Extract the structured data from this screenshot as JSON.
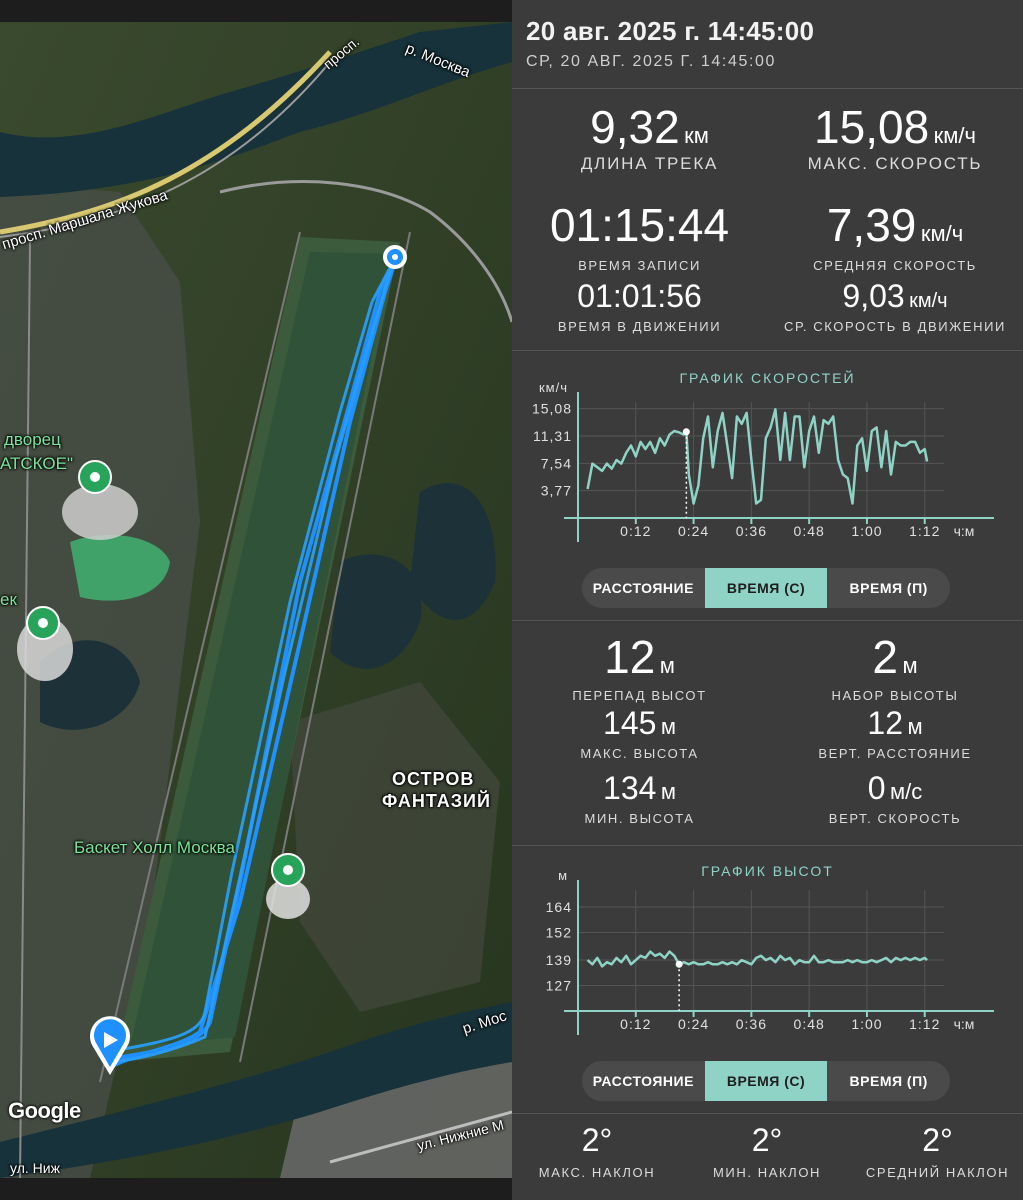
{
  "header": {
    "datetime": "20 авг. 2025 г. 14:45:00",
    "datetime_sub": "СР, 20 АВГ. 2025 Г. 14:45:00"
  },
  "map": {
    "labels": {
      "marshal_zhukov": "просп. Маршала Жукова",
      "prosp": "просп.",
      "river_top": "р. Москва",
      "river_bottom": "р. Мос",
      "palace": "дворец",
      "palace2": "АТСКОЕ\"",
      "ek": "ек",
      "basket": "Баскет Холл Москва",
      "island1": "ОСТРОВ",
      "island2": "ФАНТАЗИЙ",
      "nizhnie": "ул. Нижние М",
      "ul_nizh": "ул. Ниж"
    },
    "google_logo": "Google",
    "accent_track": "#1e90ff",
    "poi_color": "#27a35a"
  },
  "stats_top": {
    "distance": {
      "value": "9,32",
      "unit": "км",
      "label": "ДЛИНА ТРЕКА"
    },
    "max_speed": {
      "value": "15,08",
      "unit": "км/ч",
      "label": "МАКС. СКОРОСТЬ"
    },
    "rec_time": {
      "value": "01:15:44",
      "label": "ВРЕМЯ ЗАПИСИ"
    },
    "avg_speed": {
      "value": "7,39",
      "unit": "км/ч",
      "label": "СРЕДНЯЯ СКОРОСТЬ"
    },
    "move_time": {
      "value": "01:01:56",
      "label": "ВРЕМЯ В ДВИЖЕНИИ"
    },
    "move_avg_speed": {
      "value": "9,03",
      "unit": "км/ч",
      "label": "СР. СКОРОСТЬ В ДВИЖЕНИИ"
    }
  },
  "speed_chart_meta": {
    "title": "ГРАФИК СКОРОСТЕЙ",
    "y_unit": "км/ч",
    "x_unit": "ч:м"
  },
  "toggle_labels": [
    "РАССТОЯНИЕ",
    "ВРЕМЯ (С)",
    "ВРЕМЯ (П)"
  ],
  "stats_elev": {
    "diff": {
      "value": "12",
      "unit": "м",
      "label": "ПЕРЕПАД ВЫСОТ"
    },
    "gain": {
      "value": "2",
      "unit": "м",
      "label": "НАБОР ВЫСОТЫ"
    },
    "max_alt": {
      "value": "145",
      "unit": "м",
      "label": "МАКС. ВЫСОТА"
    },
    "vert_dist": {
      "value": "12",
      "unit": "м",
      "label": "ВЕРТ. РАССТОЯНИЕ"
    },
    "min_alt": {
      "value": "134",
      "unit": "м",
      "label": "МИН. ВЫСОТА"
    },
    "vert_speed": {
      "value": "0",
      "unit": "м/с",
      "label": "ВЕРТ. СКОРОСТЬ"
    }
  },
  "elev_chart_meta": {
    "title": "ГРАФИК ВЫСОТ",
    "y_unit": "м",
    "x_unit": "ч:м"
  },
  "slope": {
    "max": {
      "value": "2°",
      "label": "МАКС. НАКЛОН"
    },
    "min": {
      "value": "2°",
      "label": "МИН. НАКЛОН"
    },
    "avg": {
      "value": "2°",
      "label": "СРЕДНИЙ НАКЛОН"
    }
  },
  "chart_data": [
    {
      "type": "line",
      "title": "ГРАФИК СКОРОСТЕЙ",
      "ylabel": "км/ч",
      "xlabel": "ч:м",
      "ylim": [
        0,
        16
      ],
      "xlim": [
        0,
        76
      ],
      "yticks": [
        3.77,
        7.54,
        11.31,
        15.08
      ],
      "ytick_labels": [
        "3,77",
        "7,54",
        "11,31",
        "15,08"
      ],
      "xticks": [
        12,
        24,
        36,
        48,
        60,
        72
      ],
      "xtick_labels": [
        "0:12",
        "0:24",
        "0:36",
        "0:48",
        "1:00",
        "1:12"
      ],
      "color": "#8fd3c7",
      "cursor_x": 22.5,
      "x": [
        2,
        3,
        4,
        5,
        6,
        7,
        8,
        9,
        10,
        11,
        12,
        13,
        14,
        15,
        16,
        17,
        18,
        19,
        20,
        21,
        22,
        22.5,
        23,
        24,
        25,
        26,
        27,
        28,
        29,
        30,
        31,
        32,
        33,
        34,
        35,
        36,
        37,
        38,
        39,
        40,
        41,
        42,
        43,
        44,
        45,
        46,
        47,
        48,
        49,
        50,
        51,
        52,
        53,
        54,
        55,
        56,
        57,
        58,
        59,
        60,
        61,
        62,
        63,
        64,
        65,
        66,
        67,
        68,
        69,
        70,
        71,
        72,
        72.5
      ],
      "values": [
        4.0,
        7.5,
        7.0,
        6.5,
        7.5,
        6.8,
        8.0,
        7.5,
        9.0,
        10.0,
        8.5,
        10.5,
        9.5,
        10.5,
        9.0,
        11.0,
        10.0,
        11.5,
        12.0,
        11.8,
        11.5,
        11.9,
        6.0,
        2.0,
        4.5,
        11.0,
        14.0,
        7.0,
        12.0,
        14.5,
        10.0,
        5.5,
        14.0,
        13.0,
        14.5,
        8.0,
        2.0,
        2.5,
        11.0,
        12.5,
        15.0,
        8.0,
        14.5,
        8.0,
        14.0,
        14.0,
        7.0,
        12.0,
        14.0,
        9.0,
        13.5,
        13.0,
        14.0,
        8.0,
        6.0,
        5.5,
        2.0,
        10.0,
        11.0,
        6.5,
        12.0,
        12.5,
        7.0,
        12.0,
        6.0,
        10.5,
        10.0,
        10.0,
        10.5,
        10.5,
        9.0,
        9.5,
        7.8
      ]
    },
    {
      "type": "line",
      "title": "ГРАФИК ВЫСОТ",
      "ylabel": "м",
      "xlabel": "ч:м",
      "ylim": [
        115,
        172
      ],
      "xlim": [
        0,
        76
      ],
      "yticks": [
        127,
        139,
        152,
        164
      ],
      "ytick_labels": [
        "127",
        "139",
        "152",
        "164"
      ],
      "xticks": [
        12,
        24,
        36,
        48,
        60,
        72
      ],
      "xtick_labels": [
        "0:12",
        "0:24",
        "0:36",
        "0:48",
        "1:00",
        "1:12"
      ],
      "color": "#8fd3c7",
      "cursor_x": 21,
      "x": [
        2,
        3,
        4,
        5,
        6,
        7,
        8,
        9,
        10,
        11,
        12,
        13,
        14,
        15,
        16,
        17,
        18,
        19,
        20,
        21,
        22,
        23,
        24,
        25,
        26,
        27,
        28,
        29,
        30,
        31,
        32,
        33,
        34,
        35,
        36,
        37,
        38,
        39,
        40,
        41,
        42,
        43,
        44,
        45,
        46,
        47,
        48,
        49,
        50,
        51,
        52,
        53,
        54,
        55,
        56,
        57,
        58,
        59,
        60,
        61,
        62,
        63,
        64,
        65,
        66,
        67,
        68,
        69,
        70,
        71,
        72,
        72.5
      ],
      "values": [
        139,
        137,
        140,
        136,
        138,
        137,
        140,
        138,
        141,
        137,
        139,
        141,
        140,
        143,
        141,
        142,
        140,
        143,
        141,
        137,
        138,
        137,
        138,
        137,
        137,
        138,
        137,
        137,
        138,
        137,
        138,
        137,
        139,
        138,
        137,
        140,
        141,
        139,
        140,
        138,
        141,
        139,
        140,
        137,
        139,
        138,
        138,
        141,
        138,
        138,
        139,
        138,
        138,
        138,
        139,
        138,
        139,
        138,
        138,
        139,
        138,
        139,
        140,
        138,
        140,
        139,
        140,
        139,
        140,
        139,
        140,
        139
      ]
    }
  ]
}
